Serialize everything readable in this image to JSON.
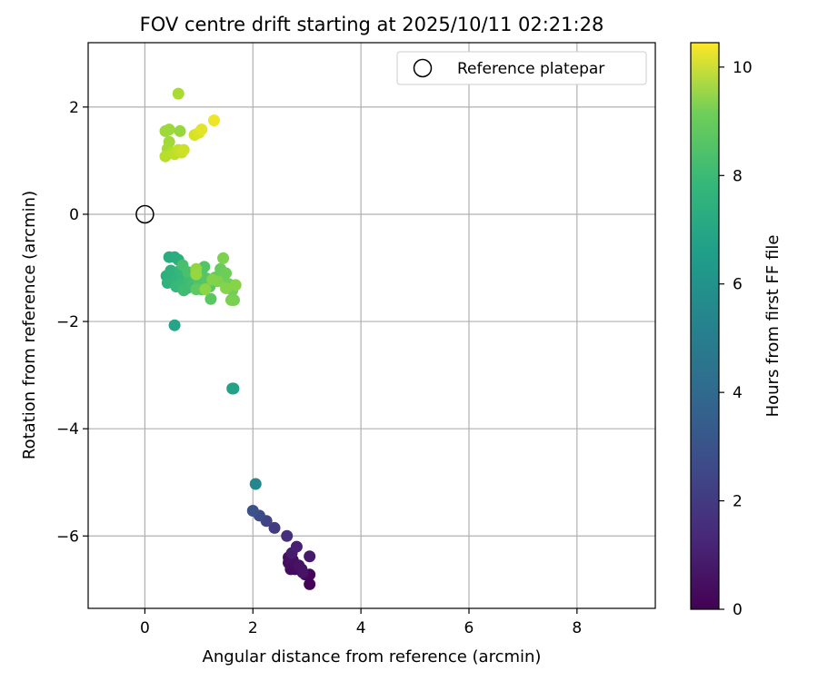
{
  "chart_data": {
    "type": "scatter",
    "title": "FOV centre drift starting at 2025/10/11 02:21:28",
    "xlabel": "Angular distance from reference (arcmin)",
    "ylabel": "Rotation from reference (arcmin)",
    "xlim": [
      -1.05,
      9.45
    ],
    "ylim": [
      -7.35,
      3.2
    ],
    "xticks": [
      0,
      2,
      4,
      6,
      8
    ],
    "yticks": [
      -6,
      -4,
      -2,
      0,
      2
    ],
    "grid": true,
    "legend": {
      "position": "top-right",
      "entries": [
        "Reference platepar"
      ]
    },
    "reference_point": {
      "x": 0,
      "y": 0
    },
    "colorbar": {
      "label": "Hours from first FF file",
      "colormap": "viridis",
      "range": [
        0,
        10.45
      ],
      "ticks": [
        0,
        2,
        4,
        6,
        8,
        10
      ]
    },
    "points": [
      [
        3.05,
        -6.9,
        0.05
      ],
      [
        3.05,
        -6.72,
        0.1
      ],
      [
        2.97,
        -6.72,
        0.15
      ],
      [
        2.9,
        -6.62,
        0.2
      ],
      [
        2.78,
        -6.62,
        0.25
      ],
      [
        2.7,
        -6.62,
        0.3
      ],
      [
        2.66,
        -6.5,
        0.35
      ],
      [
        2.74,
        -6.45,
        0.4
      ],
      [
        2.66,
        -6.4,
        0.45
      ],
      [
        2.85,
        -6.55,
        0.5
      ],
      [
        2.92,
        -6.68,
        0.55
      ],
      [
        3.05,
        -6.38,
        0.7
      ],
      [
        2.72,
        -6.32,
        0.8
      ],
      [
        2.81,
        -6.2,
        0.95
      ],
      [
        2.63,
        -6.0,
        1.4
      ],
      [
        2.4,
        -5.85,
        1.8
      ],
      [
        2.25,
        -5.72,
        2.1
      ],
      [
        2.12,
        -5.62,
        2.4
      ],
      [
        2.0,
        -5.53,
        2.6
      ],
      [
        2.05,
        -5.03,
        4.8
      ],
      [
        1.64,
        -3.25,
        5.9
      ],
      [
        1.62,
        -3.25,
        6.0
      ],
      [
        0.55,
        -2.07,
        6.2
      ],
      [
        0.45,
        -0.8,
        6.4
      ],
      [
        0.55,
        -0.8,
        6.5
      ],
      [
        0.62,
        -0.85,
        6.55
      ],
      [
        0.4,
        -1.15,
        6.6
      ],
      [
        0.48,
        -1.05,
        6.65
      ],
      [
        0.55,
        -1.1,
        6.7
      ],
      [
        0.42,
        -1.28,
        6.75
      ],
      [
        0.5,
        -1.25,
        6.8
      ],
      [
        0.6,
        -1.2,
        6.85
      ],
      [
        0.65,
        -1.05,
        6.9
      ],
      [
        0.7,
        -1.15,
        6.95
      ],
      [
        0.58,
        -1.35,
        7.0
      ],
      [
        0.68,
        -1.3,
        7.05
      ],
      [
        0.78,
        -1.38,
        7.1
      ],
      [
        0.82,
        -1.22,
        7.15
      ],
      [
        0.72,
        -1.42,
        7.2
      ],
      [
        0.88,
        -1.3,
        7.25
      ],
      [
        0.92,
        -1.18,
        7.3
      ],
      [
        0.7,
        -0.95,
        7.35
      ],
      [
        0.8,
        -1.08,
        7.4
      ],
      [
        0.95,
        -1.05,
        7.45
      ],
      [
        1.0,
        -1.25,
        7.5
      ],
      [
        1.05,
        -1.1,
        7.55
      ],
      [
        1.1,
        -0.98,
        7.6
      ],
      [
        1.15,
        -1.2,
        7.65
      ],
      [
        1.2,
        -1.35,
        7.7
      ],
      [
        1.22,
        -1.58,
        7.75
      ],
      [
        0.95,
        -1.4,
        7.8
      ],
      [
        1.05,
        -1.4,
        7.85
      ],
      [
        1.3,
        -1.18,
        7.9
      ],
      [
        1.4,
        -1.02,
        8.0
      ],
      [
        1.45,
        -1.2,
        8.05
      ],
      [
        1.5,
        -1.1,
        8.1
      ],
      [
        1.55,
        -1.3,
        8.15
      ],
      [
        1.62,
        -1.42,
        8.2
      ],
      [
        1.65,
        -1.6,
        8.25
      ],
      [
        1.6,
        -1.6,
        8.3
      ],
      [
        1.45,
        -0.82,
        8.35
      ],
      [
        1.35,
        -1.25,
        8.4
      ],
      [
        1.25,
        -1.22,
        8.45
      ],
      [
        1.5,
        -1.38,
        8.5
      ],
      [
        1.68,
        -1.32,
        8.55
      ],
      [
        1.12,
        -1.4,
        8.6
      ],
      [
        0.95,
        -1.02,
        8.7
      ],
      [
        0.95,
        -1.12,
        8.75
      ],
      [
        0.65,
        1.55,
        8.8
      ],
      [
        0.45,
        1.58,
        8.85
      ],
      [
        0.38,
        1.55,
        8.9
      ],
      [
        0.45,
        1.35,
        8.95
      ],
      [
        0.42,
        1.22,
        9.0
      ],
      [
        0.62,
        2.25,
        9.1
      ],
      [
        0.5,
        1.15,
        9.2
      ],
      [
        0.38,
        1.08,
        9.3
      ],
      [
        0.55,
        1.12,
        9.4
      ],
      [
        0.62,
        1.2,
        9.5
      ],
      [
        0.68,
        1.15,
        9.6
      ],
      [
        0.72,
        1.2,
        9.7
      ],
      [
        0.92,
        1.48,
        9.8
      ],
      [
        1.0,
        1.52,
        9.9
      ],
      [
        1.05,
        1.58,
        10.0
      ],
      [
        1.28,
        1.75,
        10.2
      ]
    ]
  }
}
